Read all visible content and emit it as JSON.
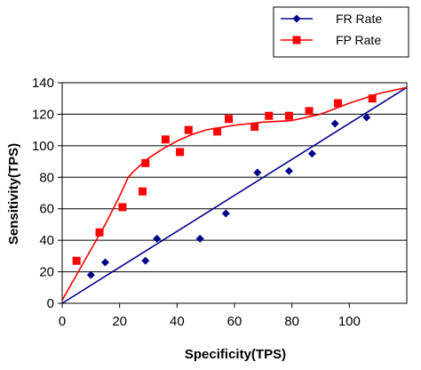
{
  "chart_data": {
    "type": "scatter",
    "title": "",
    "xlabel": "Specificity(TPS)",
    "ylabel": "Sensitivity(TPS)",
    "xlim": [
      0,
      120
    ],
    "ylim": [
      0,
      140
    ],
    "xticks": [
      0,
      20,
      40,
      60,
      80,
      100
    ],
    "yticks": [
      0,
      20,
      40,
      60,
      80,
      100,
      120,
      140
    ],
    "grid": "horizontal",
    "legend_position": "top-right",
    "series": [
      {
        "name": "FR Rate",
        "color": "#00008B",
        "marker": "diamond",
        "points": [
          [
            10,
            18
          ],
          [
            15,
            26
          ],
          [
            29,
            27
          ],
          [
            33,
            41
          ],
          [
            48,
            41
          ],
          [
            57,
            57
          ],
          [
            68,
            83
          ],
          [
            79,
            84
          ],
          [
            87,
            95
          ],
          [
            95,
            114
          ],
          [
            106,
            118
          ]
        ],
        "trendline": [
          [
            0,
            0
          ],
          [
            120,
            137
          ]
        ]
      },
      {
        "name": "FP Rate",
        "color": "#FF0000",
        "marker": "square",
        "points": [
          [
            5,
            27
          ],
          [
            13,
            45
          ],
          [
            21,
            61
          ],
          [
            28,
            71
          ],
          [
            29,
            89
          ],
          [
            36,
            104
          ],
          [
            41,
            96
          ],
          [
            44,
            110
          ],
          [
            54,
            109
          ],
          [
            58,
            117
          ],
          [
            67,
            112
          ],
          [
            72,
            119
          ],
          [
            79,
            119
          ],
          [
            86,
            122
          ],
          [
            96,
            127
          ],
          [
            108,
            130
          ]
        ],
        "trendline": [
          [
            0,
            2
          ],
          [
            5,
            18
          ],
          [
            10,
            34
          ],
          [
            15,
            50
          ],
          [
            20,
            68
          ],
          [
            23,
            80
          ],
          [
            25,
            84
          ],
          [
            30,
            92
          ],
          [
            35,
            98
          ],
          [
            40,
            103
          ],
          [
            45,
            107
          ],
          [
            50,
            110
          ],
          [
            60,
            113
          ],
          [
            70,
            115
          ],
          [
            80,
            116
          ],
          [
            90,
            120
          ],
          [
            100,
            127
          ],
          [
            110,
            133
          ],
          [
            120,
            137
          ]
        ]
      }
    ]
  }
}
